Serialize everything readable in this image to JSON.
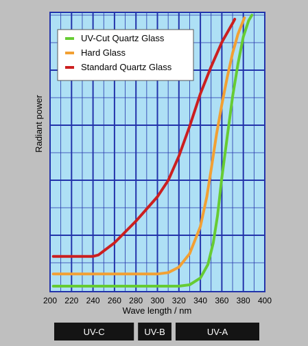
{
  "chart_data": {
    "type": "line",
    "xlabel": "Wave length / nm",
    "ylabel": "Radiant power",
    "xlim": [
      200,
      400
    ],
    "x_ticks": [
      200,
      220,
      240,
      260,
      280,
      300,
      320,
      340,
      360,
      380,
      400
    ],
    "grid": true,
    "legend_position": "top-left",
    "series": [
      {
        "name": "UV-Cut Quartz Glass",
        "color": "#66cc33",
        "points": [
          [
            203,
            0.0
          ],
          [
            220,
            0.0
          ],
          [
            260,
            0.0
          ],
          [
            300,
            0.0
          ],
          [
            320,
            0.0
          ],
          [
            330,
            0.005
          ],
          [
            340,
            0.03
          ],
          [
            347,
            0.08
          ],
          [
            352,
            0.16
          ],
          [
            356,
            0.26
          ],
          [
            360,
            0.4
          ],
          [
            365,
            0.55
          ],
          [
            370,
            0.7
          ],
          [
            375,
            0.82
          ],
          [
            380,
            0.92
          ],
          [
            385,
            0.98
          ],
          [
            388,
            1.0
          ]
        ]
      },
      {
        "name": "Hard Glass",
        "color": "#f2a033",
        "points": [
          [
            203,
            0.045
          ],
          [
            240,
            0.045
          ],
          [
            280,
            0.045
          ],
          [
            300,
            0.045
          ],
          [
            310,
            0.05
          ],
          [
            320,
            0.07
          ],
          [
            330,
            0.12
          ],
          [
            340,
            0.22
          ],
          [
            346,
            0.33
          ],
          [
            350,
            0.43
          ],
          [
            355,
            0.56
          ],
          [
            360,
            0.67
          ],
          [
            365,
            0.77
          ],
          [
            370,
            0.86
          ],
          [
            375,
            0.93
          ],
          [
            381,
            0.99
          ]
        ]
      },
      {
        "name": "Standard Quartz Glass",
        "color": "#cc1f1f",
        "points": [
          [
            203,
            0.11
          ],
          [
            240,
            0.11
          ],
          [
            245,
            0.115
          ],
          [
            260,
            0.16
          ],
          [
            280,
            0.24
          ],
          [
            300,
            0.33
          ],
          [
            310,
            0.39
          ],
          [
            320,
            0.48
          ],
          [
            330,
            0.59
          ],
          [
            340,
            0.71
          ],
          [
            350,
            0.81
          ],
          [
            360,
            0.9
          ],
          [
            370,
            0.97
          ],
          [
            372,
            0.985
          ]
        ]
      }
    ],
    "bands": [
      {
        "label": "UV-C",
        "range": [
          200,
          280
        ]
      },
      {
        "label": "UV-B",
        "range": [
          280,
          315
        ]
      },
      {
        "label": "UV-A",
        "range": [
          315,
          400
        ]
      }
    ]
  },
  "colors": {
    "page_bg": "#bfbfbf",
    "plot_bg": "#aee0f5",
    "grid": "#2233aa",
    "band_bg": "#141414"
  }
}
